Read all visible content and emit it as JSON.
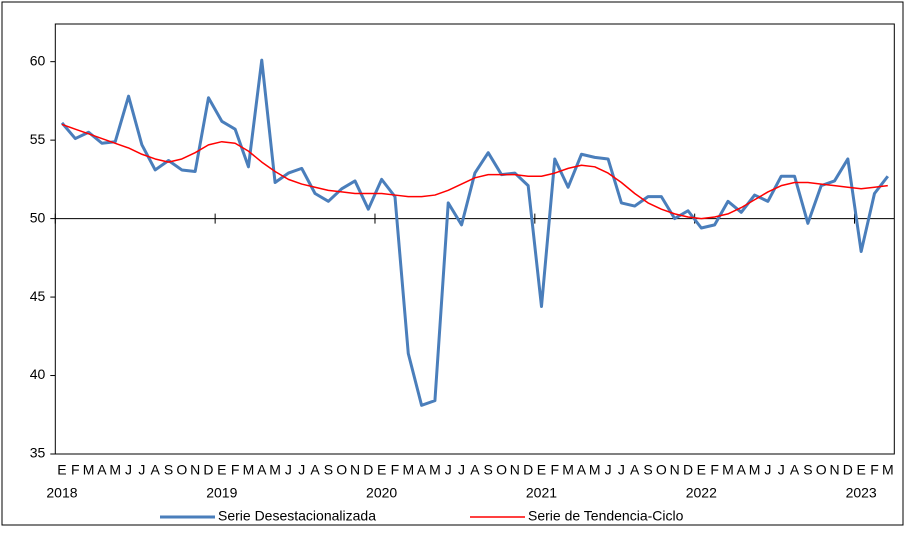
{
  "chart_data": {
    "type": "line",
    "categories": [
      "E",
      "F",
      "M",
      "A",
      "M",
      "J",
      "J",
      "A",
      "S",
      "O",
      "N",
      "D",
      "E",
      "F",
      "M",
      "A",
      "M",
      "J",
      "J",
      "A",
      "S",
      "O",
      "N",
      "D",
      "E",
      "F",
      "M",
      "A",
      "M",
      "J",
      "J",
      "A",
      "S",
      "O",
      "N",
      "D",
      "E",
      "F",
      "M",
      "A",
      "M",
      "J",
      "J",
      "A",
      "S",
      "O",
      "N",
      "D",
      "E",
      "F",
      "M",
      "A",
      "M",
      "J",
      "J",
      "A",
      "S",
      "O",
      "N",
      "D",
      "E",
      "F",
      "M"
    ],
    "years": [
      "2018",
      null,
      null,
      null,
      null,
      null,
      null,
      null,
      null,
      null,
      null,
      null,
      "2019",
      null,
      null,
      null,
      null,
      null,
      null,
      null,
      null,
      null,
      null,
      null,
      "2020",
      null,
      null,
      null,
      null,
      null,
      null,
      null,
      null,
      null,
      null,
      null,
      "2021",
      null,
      null,
      null,
      null,
      null,
      null,
      null,
      null,
      null,
      null,
      null,
      "2022",
      null,
      null,
      null,
      null,
      null,
      null,
      null,
      null,
      null,
      null,
      null,
      "2023",
      null,
      null
    ],
    "series": [
      {
        "name": "Serie Desestacionalizada",
        "color": "#4a7ebb",
        "values": [
          56.1,
          55.1,
          55.5,
          54.8,
          54.9,
          57.8,
          54.7,
          53.1,
          53.7,
          53.1,
          53.0,
          57.7,
          56.2,
          55.7,
          53.3,
          60.1,
          52.3,
          52.9,
          53.2,
          51.6,
          51.1,
          51.9,
          52.4,
          50.6,
          52.5,
          51.4,
          41.4,
          38.1,
          38.4,
          51.0,
          49.6,
          52.9,
          54.2,
          52.8,
          52.9,
          52.1,
          44.4,
          53.8,
          52.0,
          54.1,
          53.9,
          53.8,
          51.0,
          50.8,
          51.4,
          51.4,
          50.0,
          50.5,
          49.4,
          49.6,
          51.1,
          50.4,
          51.5,
          51.1,
          52.7,
          52.7,
          49.7,
          52.1,
          52.4,
          53.8,
          47.9,
          51.6,
          52.7
        ]
      },
      {
        "name": "Serie de Tendencia-Ciclo",
        "color": "#ff0000",
        "values": [
          56.0,
          55.7,
          55.4,
          55.1,
          54.8,
          54.5,
          54.1,
          53.8,
          53.6,
          53.8,
          54.2,
          54.7,
          54.9,
          54.8,
          54.3,
          53.6,
          53.0,
          52.5,
          52.2,
          52.0,
          51.8,
          51.7,
          51.6,
          51.6,
          51.6,
          51.5,
          51.4,
          51.4,
          51.5,
          51.8,
          52.2,
          52.6,
          52.8,
          52.8,
          52.8,
          52.7,
          52.7,
          52.9,
          53.2,
          53.4,
          53.3,
          52.9,
          52.3,
          51.6,
          51.0,
          50.6,
          50.3,
          50.1,
          50.0,
          50.1,
          50.3,
          50.7,
          51.2,
          51.7,
          52.1,
          52.3,
          52.3,
          52.2,
          52.1,
          52.0,
          51.9,
          52.0,
          52.1
        ]
      }
    ],
    "ylim": [
      35,
      62.4
    ],
    "yticks": [
      35,
      40,
      45,
      50,
      55,
      60
    ],
    "x_axis_at": 50,
    "legend": "bottom"
  }
}
